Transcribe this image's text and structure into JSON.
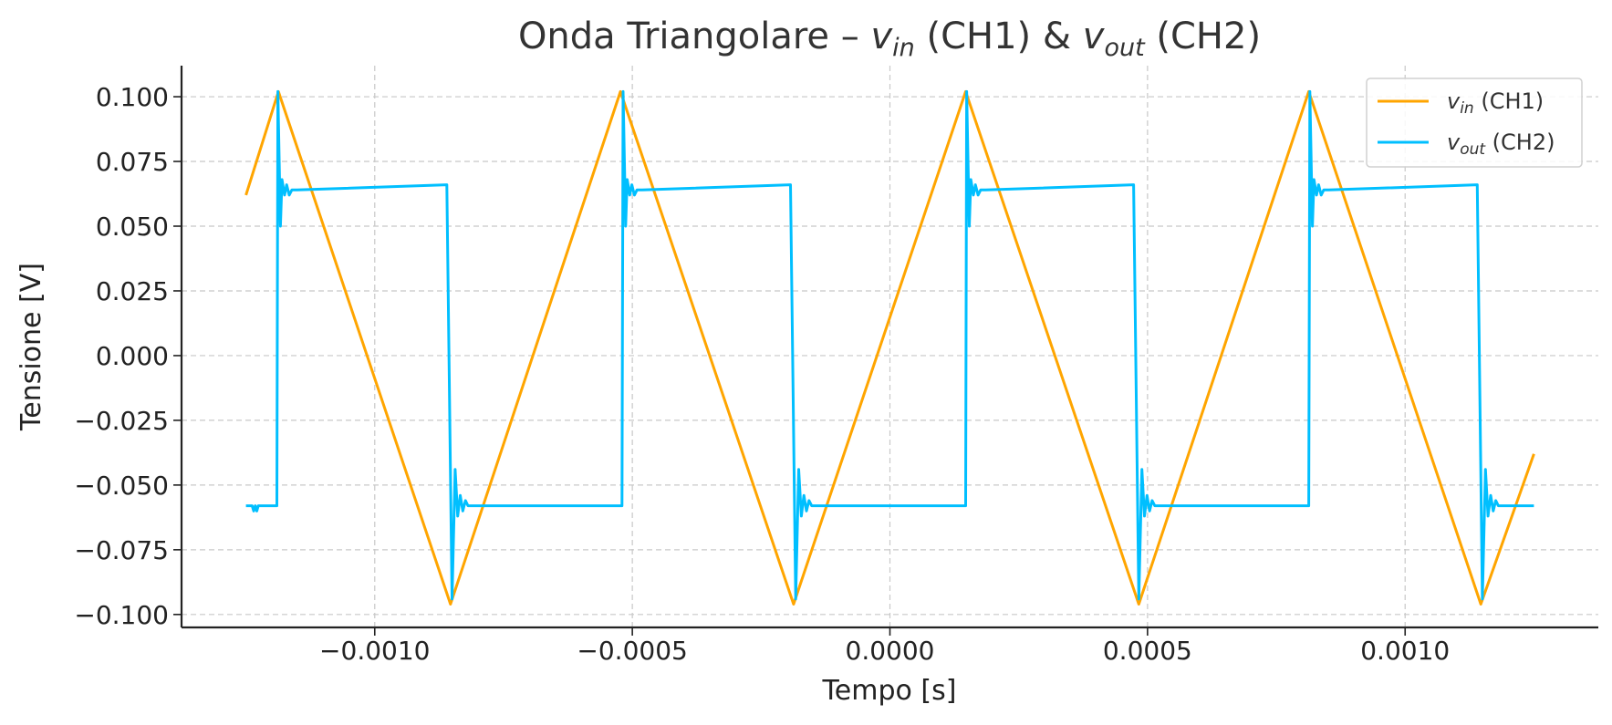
{
  "chart_data": {
    "type": "line",
    "title_parts": {
      "prefix": "Onda Triangolare – ",
      "vin_main": "v",
      "vin_sub": "in",
      "mid": " (CH1) & ",
      "vout_main": "v",
      "vout_sub": "out",
      "suffix": " (CH2)"
    },
    "xlabel": "Tempo [s]",
    "ylabel": "Tensione [V]",
    "xlim": [
      -0.001375,
      0.001375
    ],
    "ylim": [
      -0.105,
      0.112
    ],
    "grid": true,
    "legend_position": "top-right",
    "x_ticks": [
      {
        "value": -0.001,
        "label": "−0.0010"
      },
      {
        "value": -0.0005,
        "label": "−0.0005"
      },
      {
        "value": 0.0,
        "label": "0.0000"
      },
      {
        "value": 0.0005,
        "label": "0.0005"
      },
      {
        "value": 0.001,
        "label": "0.0010"
      }
    ],
    "y_ticks": [
      {
        "value": 0.1,
        "label": "0.100"
      },
      {
        "value": 0.075,
        "label": "0.075"
      },
      {
        "value": 0.05,
        "label": "0.050"
      },
      {
        "value": 0.025,
        "label": "0.025"
      },
      {
        "value": 0.0,
        "label": "0.000"
      },
      {
        "value": -0.025,
        "label": "−0.025"
      },
      {
        "value": -0.05,
        "label": "−0.050"
      },
      {
        "value": -0.075,
        "label": "−0.075"
      },
      {
        "value": -0.1,
        "label": "−0.100"
      }
    ],
    "series": [
      {
        "name": "v_in (CH1)",
        "legend_main": "v",
        "legend_sub": "in",
        "legend_suffix": " (CH1)",
        "color": "#ffa500",
        "x": [
          -0.00125,
          -0.001187,
          -0.000853,
          -0.000523,
          -0.000187,
          0.000147,
          0.000483,
          0.000813,
          0.001147,
          0.00125
        ],
        "y": [
          0.062,
          0.102,
          -0.096,
          0.102,
          -0.096,
          0.102,
          -0.096,
          0.102,
          -0.096,
          -0.038
        ]
      },
      {
        "name": "v_out (CH2)",
        "legend_main": "v",
        "legend_sub": "out",
        "legend_suffix": " (CH2)",
        "color": "#00bfff",
        "x": [
          -0.00125,
          -0.001238,
          -0.001235,
          -0.001232,
          -0.001229,
          -0.001226,
          -0.00119,
          -0.001188,
          -0.001183,
          -0.00118,
          -0.001175,
          -0.001171,
          -0.001166,
          -0.001161,
          -0.001156,
          -0.001151,
          -0.00086,
          -0.00085,
          -0.000844,
          -0.000839,
          -0.000834,
          -0.000829,
          -0.000824,
          -0.000819,
          -0.000814,
          -0.000809,
          -0.00052,
          -0.000518,
          -0.000513,
          -0.00051,
          -0.000505,
          -0.000501,
          -0.000496,
          -0.000491,
          -0.000486,
          -0.000481,
          -0.000193,
          -0.000183,
          -0.000177,
          -0.000172,
          -0.000167,
          -0.000162,
          -0.000157,
          -0.000152,
          -0.000147,
          -0.000142,
          0.000147,
          0.000149,
          0.000154,
          0.000157,
          0.000162,
          0.000166,
          0.000171,
          0.000176,
          0.000181,
          0.000186,
          0.000473,
          0.000483,
          0.000489,
          0.000494,
          0.000499,
          0.000504,
          0.000509,
          0.000514,
          0.000519,
          0.000524,
          0.000813,
          0.000815,
          0.00082,
          0.000823,
          0.000828,
          0.000832,
          0.000837,
          0.000842,
          0.000847,
          0.000852,
          0.00114,
          0.00115,
          0.001156,
          0.001161,
          0.001166,
          0.001171,
          0.001176,
          0.001181,
          0.001186,
          0.001191,
          0.00125
        ],
        "y": [
          -0.058,
          -0.058,
          -0.06,
          -0.058,
          -0.06,
          -0.058,
          -0.058,
          0.102,
          0.05,
          0.068,
          0.062,
          0.066,
          0.062,
          0.064,
          0.064,
          0.064,
          0.066,
          -0.094,
          -0.044,
          -0.062,
          -0.054,
          -0.06,
          -0.056,
          -0.058,
          -0.058,
          -0.058,
          -0.058,
          0.102,
          0.05,
          0.068,
          0.062,
          0.066,
          0.062,
          0.064,
          0.064,
          0.064,
          0.066,
          -0.094,
          -0.044,
          -0.062,
          -0.054,
          -0.06,
          -0.056,
          -0.058,
          -0.058,
          -0.058,
          -0.058,
          0.102,
          0.05,
          0.068,
          0.062,
          0.066,
          0.062,
          0.064,
          0.064,
          0.064,
          0.066,
          -0.094,
          -0.044,
          -0.062,
          -0.054,
          -0.06,
          -0.056,
          -0.058,
          -0.058,
          -0.058,
          -0.058,
          0.102,
          0.05,
          0.068,
          0.062,
          0.066,
          0.062,
          0.064,
          0.064,
          0.064,
          0.066,
          -0.094,
          -0.044,
          -0.062,
          -0.054,
          -0.06,
          -0.056,
          -0.058,
          -0.058,
          -0.058,
          -0.058
        ]
      }
    ]
  }
}
